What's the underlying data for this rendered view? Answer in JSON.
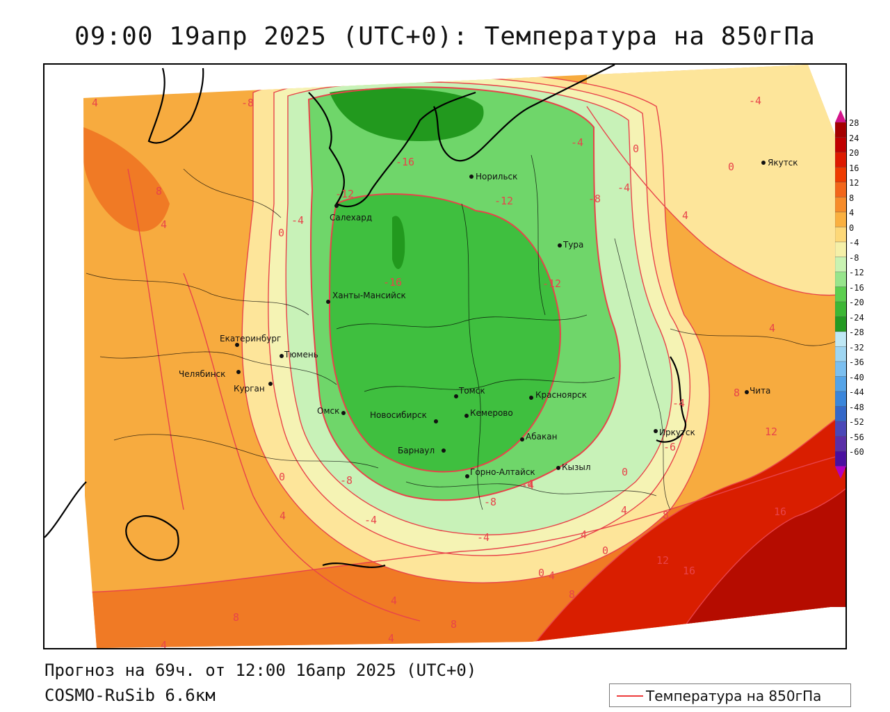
{
  "title": "09:00 19апр 2025 (UTC+0): Температура на 850гПа",
  "footer": {
    "forecast": "Прогноз на 69ч. от 12:00 16апр 2025 (UTC+0)",
    "model": "COSMO-RuSib 6.6км"
  },
  "legend": {
    "line_label": "Температура на 850гПа",
    "line_color": "#ee3b3b"
  },
  "colorbar": {
    "labels": [
      "28",
      "24",
      "20",
      "16",
      "12",
      "8",
      "4",
      "0",
      "-4",
      "-8",
      "-12",
      "-16",
      "-20",
      "-24",
      "-28",
      "-32",
      "-36",
      "-40",
      "-44",
      "-48",
      "-52",
      "-56",
      "-60"
    ],
    "colors": [
      "#a50000",
      "#c00000",
      "#dd1a00",
      "#ee3b00",
      "#f2661a",
      "#f78c2a",
      "#fab040",
      "#fdd878",
      "#f5f0a8",
      "#c9f3b2",
      "#97e58c",
      "#5ccf4f",
      "#3db735",
      "#249a22",
      "#bfe8f5",
      "#9fd6f2",
      "#7bbff0",
      "#55a4e8",
      "#3a86db",
      "#3468c9",
      "#4a47b8",
      "#5a2fa8",
      "#4a10a0"
    ],
    "top_color": "#d4148a",
    "bottom_color": "#b000c0"
  },
  "cities": [
    {
      "name": "Норильск"
    },
    {
      "name": "Якутск"
    },
    {
      "name": "Салехард"
    },
    {
      "name": "Тура"
    },
    {
      "name": "Ханты-Мансийск"
    },
    {
      "name": "Екатеринбург"
    },
    {
      "name": "Тюмень"
    },
    {
      "name": "Челябинск"
    },
    {
      "name": "Курган"
    },
    {
      "name": "Томск"
    },
    {
      "name": "Красноярск"
    },
    {
      "name": "Омск"
    },
    {
      "name": "Новосибирск"
    },
    {
      "name": "Кемерово"
    },
    {
      "name": "Абакан"
    },
    {
      "name": "Иркутск"
    },
    {
      "name": "Чита"
    },
    {
      "name": "Барнаул"
    },
    {
      "name": "Горно-Алтайск"
    },
    {
      "name": "Кызыл"
    }
  ],
  "contour_labels": [
    "4",
    "-8",
    "-16",
    "-12",
    "8",
    "4",
    "0",
    "-4",
    "-12",
    "-8",
    "-4",
    "0",
    "-16",
    "-12",
    "-4",
    "-4",
    "0",
    "4",
    "4",
    "-4",
    "8",
    "-6",
    "12",
    "8",
    "-8",
    "-4",
    "-4",
    "-8",
    "0",
    "4",
    "4",
    "8",
    "16",
    "4",
    "0",
    "12",
    "16",
    "0",
    "4",
    "8",
    "8",
    "4",
    "8",
    "-4",
    "-4",
    "4",
    "0",
    "4"
  ],
  "colors": {
    "warm_orange": "#f7ab3f",
    "deep_orange": "#f07a25",
    "red": "#d91e00",
    "dark_red": "#b50c00",
    "pale_yellow": "#fde59a",
    "yellow_green": "#f5f3b4",
    "light_green": "#c8f2b8",
    "mid_green": "#6fd66a",
    "green": "#3fbf3f",
    "dark_green": "#22991e",
    "contour": "#e8434a",
    "border": "#000000"
  }
}
